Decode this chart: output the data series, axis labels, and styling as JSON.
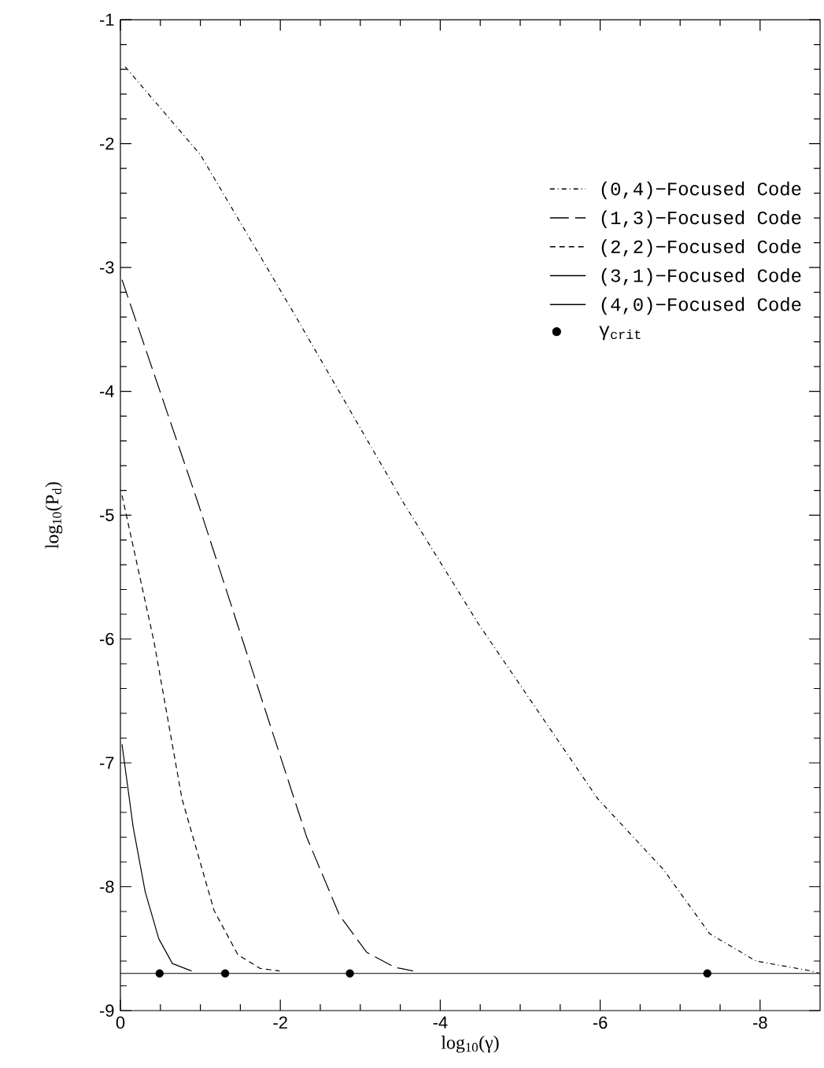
{
  "chart_data": {
    "type": "line",
    "xlabel": "log$_{10}$(γ)",
    "ylabel": "log$_{10}$(P$_{d}$)",
    "xlim": [
      0,
      -8.75
    ],
    "ylim": [
      -9,
      -1
    ],
    "xticks": [
      0,
      -2,
      -4,
      -6,
      -8
    ],
    "yticks": [
      -9,
      -8,
      -7,
      -6,
      -5,
      -4,
      -3,
      -2,
      -1
    ],
    "legend": "top right",
    "marker": "none",
    "series": [
      {
        "name": "(0,4)−Focused Code",
        "color": "#000000",
        "line_style": "dashdot",
        "x": [
          -0.06,
          -1.0,
          -2.16,
          -3.54,
          -4.48,
          -5.23,
          -5.97,
          -6.79,
          -7.37,
          -7.95,
          -8.64,
          -8.75
        ],
        "values": [
          -1.38,
          -2.09,
          -3.36,
          -4.9,
          -5.88,
          -6.59,
          -7.29,
          -7.86,
          -8.38,
          -8.6,
          -8.68,
          -8.7
        ]
      },
      {
        "name": "(1,3)−Focused Code",
        "color": "#000000",
        "line_style": "longdashed",
        "x": [
          -0.02,
          -0.97,
          -1.84,
          -2.33,
          -2.74,
          -3.08,
          -3.43,
          -3.66
        ],
        "values": [
          -3.1,
          -4.9,
          -6.63,
          -7.6,
          -8.23,
          -8.53,
          -8.65,
          -8.68
        ]
      },
      {
        "name": "(2,2)−Focused Code",
        "color": "#000000",
        "line_style": "dashed",
        "x": [
          -0.02,
          -0.42,
          -0.77,
          -1.17,
          -1.47,
          -1.75,
          -1.99
        ],
        "values": [
          -4.84,
          -6.02,
          -7.29,
          -8.19,
          -8.55,
          -8.66,
          -8.68
        ]
      },
      {
        "name": "(3,1)−Focused Code",
        "color": "#000000",
        "line_style": "solid",
        "x": [
          -0.02,
          -0.16,
          -0.31,
          -0.48,
          -0.65,
          -0.89
        ],
        "values": [
          -6.85,
          -7.52,
          -8.04,
          -8.42,
          -8.62,
          -8.68
        ]
      },
      {
        "name": "(4,0)−Focused Code",
        "color": "#000000",
        "line_style": "solid",
        "x": [
          0,
          -8.75
        ],
        "values": [
          -8.7,
          -8.7
        ]
      },
      {
        "name": "γ$_{crit}$",
        "type": "scatter",
        "marker": "circle",
        "color": "#000000",
        "x": [
          -0.49,
          -1.31,
          -2.87,
          -7.34
        ],
        "values": [
          -8.7,
          -8.7,
          -8.7,
          -8.7
        ]
      }
    ]
  }
}
